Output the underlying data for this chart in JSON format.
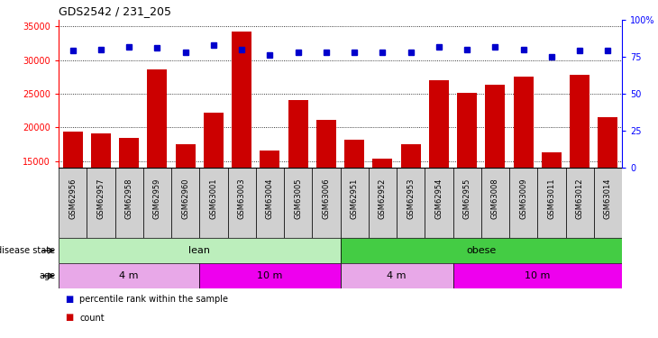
{
  "title": "GDS2542 / 231_205",
  "samples": [
    "GSM62956",
    "GSM62957",
    "GSM62958",
    "GSM62959",
    "GSM62960",
    "GSM63001",
    "GSM63003",
    "GSM63004",
    "GSM63005",
    "GSM63006",
    "GSM62951",
    "GSM62952",
    "GSM62953",
    "GSM62954",
    "GSM62955",
    "GSM63008",
    "GSM63009",
    "GSM63011",
    "GSM63012",
    "GSM63014"
  ],
  "counts": [
    19300,
    19100,
    18400,
    28600,
    17500,
    22200,
    34200,
    16500,
    24000,
    21100,
    18100,
    15400,
    17500,
    27000,
    25200,
    26400,
    27500,
    16300,
    27800,
    21500
  ],
  "percentiles": [
    79,
    80,
    82,
    81,
    78,
    83,
    80,
    76,
    78,
    78,
    78,
    78,
    78,
    82,
    80,
    82,
    80,
    75,
    79,
    79
  ],
  "ylim_left": [
    14000,
    36000
  ],
  "ylim_right": [
    0,
    100
  ],
  "yticks_left": [
    15000,
    20000,
    25000,
    30000,
    35000
  ],
  "yticks_right": [
    0,
    25,
    50,
    75,
    100
  ],
  "bar_color": "#cc0000",
  "dot_color": "#0000cc",
  "lean_color": "#bceebc",
  "obese_color": "#44cc44",
  "age_light_color": "#e8a8e8",
  "age_dark_color": "#ee00ee",
  "label_box_color": "#d0d0d0",
  "disease_groups": [
    {
      "start": 0,
      "end": 10,
      "color": "#bceebc",
      "label": "lean"
    },
    {
      "start": 10,
      "end": 20,
      "color": "#44cc44",
      "label": "obese"
    }
  ],
  "age_groups": [
    {
      "start": 0,
      "end": 5,
      "color": "#e8a8e8",
      "label": "4 m"
    },
    {
      "start": 5,
      "end": 10,
      "color": "#ee00ee",
      "label": "10 m"
    },
    {
      "start": 10,
      "end": 14,
      "color": "#e8a8e8",
      "label": "4 m"
    },
    {
      "start": 14,
      "end": 20,
      "color": "#ee00ee",
      "label": "10 m"
    }
  ],
  "legend_items": [
    {
      "color": "#cc0000",
      "label": "count"
    },
    {
      "color": "#0000cc",
      "label": "percentile rank within the sample"
    }
  ],
  "n_samples": 20
}
